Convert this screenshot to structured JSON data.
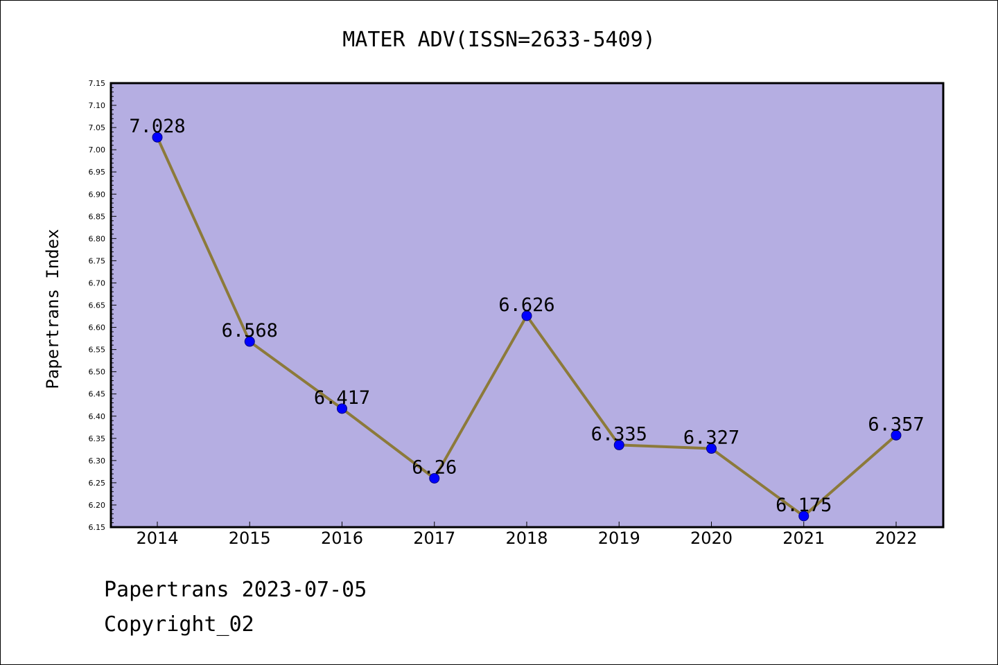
{
  "chart_data": {
    "type": "line",
    "title": "MATER ADV(ISSN=2633-5409)",
    "xlabel": "",
    "ylabel": "Papertrans Index",
    "categories": [
      "2014",
      "2015",
      "2016",
      "2017",
      "2018",
      "2019",
      "2020",
      "2021",
      "2022"
    ],
    "series": [
      {
        "values": [
          7.028,
          6.568,
          6.417,
          6.26,
          6.626,
          6.335,
          6.327,
          6.175,
          6.357
        ],
        "data_labels": [
          "7.028",
          "6.568",
          "6.417",
          "6.26",
          "6.626",
          "6.335",
          "6.327",
          "6.175",
          "6.357"
        ]
      }
    ],
    "ylim": [
      6.15,
      7.15
    ],
    "yticks": [
      "6.15",
      "6.20",
      "6.25",
      "6.30",
      "6.35",
      "6.40",
      "6.45",
      "6.50",
      "6.55",
      "6.60",
      "6.65",
      "6.70",
      "6.75",
      "6.80",
      "6.85",
      "6.90",
      "6.95",
      "7.00",
      "7.05",
      "7.10",
      "7.15"
    ],
    "grid": false,
    "legend": "none",
    "colors": {
      "plot_background": "#b5aee2",
      "line": "#8c7a3a",
      "marker": "#0000ff",
      "marker_edge": "#000080"
    }
  },
  "footer": {
    "date_line": "Papertrans 2023-07-05",
    "copyright": "Copyright_02"
  }
}
